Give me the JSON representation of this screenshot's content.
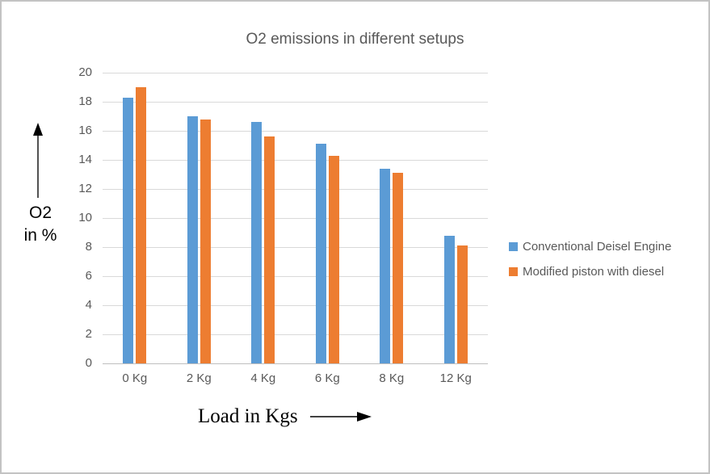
{
  "window": {
    "background": "#ffffff",
    "border_color": "#c3c3c3"
  },
  "chart_data": {
    "type": "bar",
    "title": "O2 emissions in different setups",
    "categories": [
      "0 Kg",
      "2 Kg",
      "4 Kg",
      "6 Kg",
      "8 Kg",
      "12 Kg"
    ],
    "series": [
      {
        "name": "Conventional Deisel Engine",
        "color": "#5B9BD5",
        "values": [
          18.3,
          17.0,
          16.6,
          15.1,
          13.4,
          8.8
        ]
      },
      {
        "name": "Modified piston with diesel",
        "color": "#ED7D31",
        "values": [
          19.0,
          16.8,
          15.6,
          14.3,
          13.1,
          8.1
        ]
      }
    ],
    "xlabel": "Load in Kgs",
    "ylabel_lines": [
      "O2",
      "in %"
    ],
    "ylim": [
      0,
      20
    ],
    "ytick_step": 2,
    "grid": "horizontal",
    "legend_position": "right",
    "gridline_color": "#D9D9D9",
    "axis_line_color": "#BFBFBF",
    "tick_label_color": "#595959",
    "title_color": "#595959",
    "legend_text_color": "#595959",
    "axis_label_color": "#000000"
  }
}
